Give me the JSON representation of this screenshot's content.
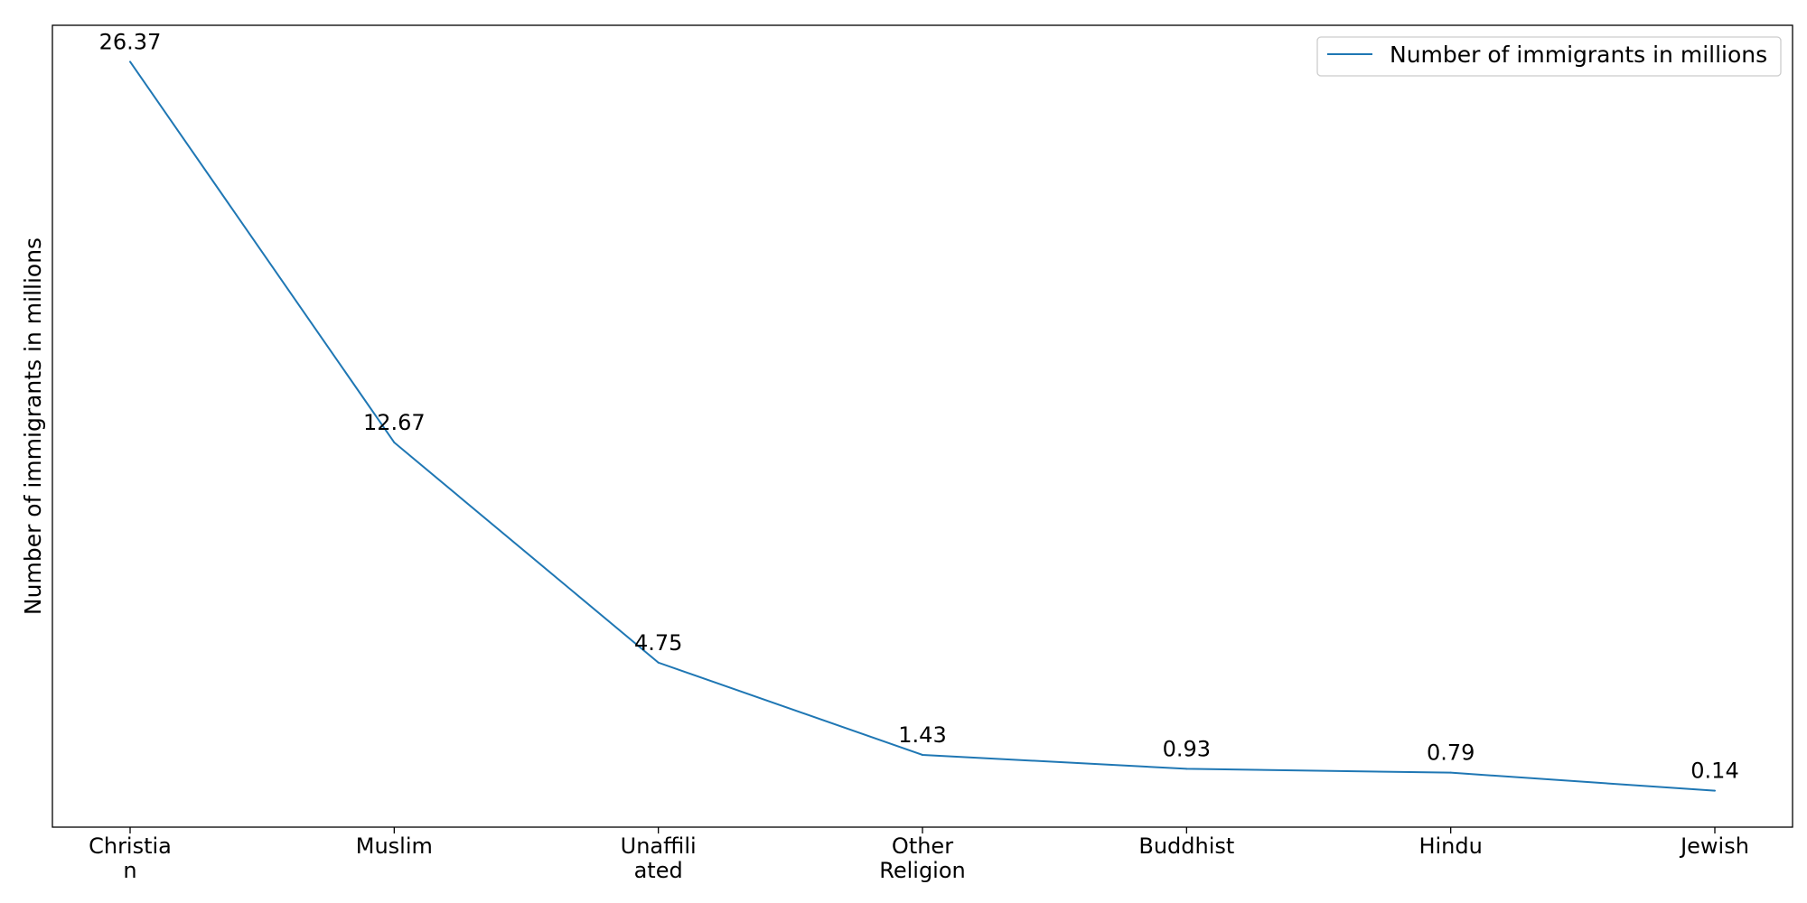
{
  "chart_data": {
    "type": "line",
    "title": "",
    "xlabel": "",
    "ylabel": "Number of immigrants in millions",
    "categories": [
      [
        "Christia",
        "n"
      ],
      [
        "Muslim"
      ],
      [
        "Unaffili",
        "ated"
      ],
      [
        "Other",
        "Religion"
      ],
      [
        "Buddhist"
      ],
      [
        "Hindu"
      ],
      [
        "Jewish"
      ]
    ],
    "series": [
      {
        "name": "Number of immigrants in millions",
        "values": [
          26.37,
          12.67,
          4.75,
          1.43,
          0.93,
          0.79,
          0.14
        ],
        "color": "#1f77b4"
      }
    ],
    "data_labels": [
      "26.37",
      "12.67",
      "4.75",
      "1.43",
      "0.93",
      "0.79",
      "0.14"
    ],
    "ylim": [
      -1.17,
      27.68
    ],
    "y_ticks_visible": false,
    "grid": false,
    "legend": "upper right"
  }
}
